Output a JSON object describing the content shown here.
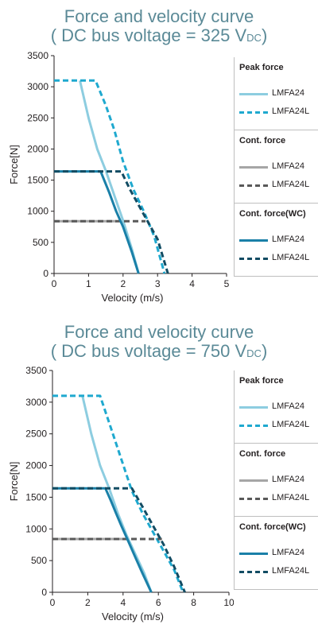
{
  "colors": {
    "peak_lmfa24": "#8dcde0",
    "peak_lmfa24l": "#1fa9cf",
    "cont_lmfa24": "#a6a6a6",
    "cont_lmfa24l": "#595959",
    "wc_lmfa24": "#1a80a8",
    "wc_lmfa24l": "#124c63",
    "title": "#5b8a97"
  },
  "legend": {
    "groups": [
      {
        "title": "Peak force",
        "items": [
          "LMFA24",
          "LMFA24L"
        ]
      },
      {
        "title": "Cont. force",
        "items": [
          "LMFA24",
          "LMFA24L"
        ]
      },
      {
        "title": "Cont. force(WC)",
        "items": [
          "LMFA24",
          "LMFA24L"
        ]
      }
    ]
  },
  "chart_data": [
    {
      "type": "line",
      "title_line1": "Force and velocity curve",
      "title_line2_pre": "( DC bus voltage = 325 V",
      "title_line2_sub": "DC",
      "title_line2_post": ")",
      "xlabel": "Velocity (m/s)",
      "ylabel": "Force[N]",
      "xlim": [
        0,
        5
      ],
      "ylim": [
        0,
        3500
      ],
      "xticks": [
        0,
        1,
        2,
        3,
        4,
        5
      ],
      "yticks": [
        0,
        500,
        1000,
        1500,
        2000,
        2500,
        3000,
        3500
      ],
      "grid": false,
      "legend_position": "right",
      "series": [
        {
          "name": "LMFA24",
          "group": "Peak force",
          "dashed": false,
          "color_key": "peak_lmfa24",
          "x": [
            0.75,
            1.0,
            1.25,
            1.5,
            1.75,
            2.0,
            2.25,
            2.45
          ],
          "y": [
            3100,
            2500,
            2000,
            1650,
            1250,
            850,
            400,
            0
          ]
        },
        {
          "name": "LMFA24L",
          "group": "Peak force",
          "dashed": true,
          "color_key": "peak_lmfa24l",
          "x": [
            0,
            1.2,
            1.5,
            1.75,
            2.0,
            2.3,
            2.6,
            2.9,
            3.2
          ],
          "y": [
            3100,
            3100,
            2700,
            2300,
            1800,
            1350,
            1000,
            600,
            0
          ]
        },
        {
          "name": "LMFA24",
          "group": "Cont. force",
          "dashed": false,
          "color_key": "cont_lmfa24",
          "x": [
            0,
            1.8
          ],
          "y": [
            840,
            840
          ]
        },
        {
          "name": "LMFA24L",
          "group": "Cont. force",
          "dashed": true,
          "color_key": "cont_lmfa24l",
          "x": [
            0,
            2.65
          ],
          "y": [
            840,
            840
          ]
        },
        {
          "name": "LMFA24",
          "group": "Cont. force(WC)",
          "dashed": false,
          "color_key": "wc_lmfa24",
          "x": [
            0,
            1.35,
            1.6,
            1.8,
            2.0,
            2.25,
            2.45
          ],
          "y": [
            1640,
            1640,
            1300,
            1000,
            750,
            350,
            0
          ]
        },
        {
          "name": "LMFA24L",
          "group": "Cont. force(WC)",
          "dashed": true,
          "color_key": "wc_lmfa24l",
          "x": [
            0,
            1.95,
            2.2,
            2.6,
            3.0,
            3.3
          ],
          "y": [
            1640,
            1640,
            1350,
            950,
            550,
            0
          ]
        }
      ]
    },
    {
      "type": "line",
      "title_line1": "Force and velocity curve",
      "title_line2_pre": "( DC bus voltage = 750 V",
      "title_line2_sub": "DC",
      "title_line2_post": ")",
      "xlabel": "Velocity (m/s)",
      "ylabel": "Force[N]",
      "xlim": [
        0,
        10
      ],
      "ylim": [
        0,
        3500
      ],
      "xticks": [
        0,
        2,
        4,
        6,
        8,
        10
      ],
      "yticks": [
        0,
        500,
        1000,
        1500,
        2000,
        2500,
        3000,
        3500
      ],
      "grid": false,
      "legend_position": "right",
      "series": [
        {
          "name": "LMFA24",
          "group": "Peak force",
          "dashed": false,
          "color_key": "peak_lmfa24",
          "x": [
            1.7,
            2.2,
            2.7,
            3.2,
            3.7,
            4.2,
            4.7,
            5.2,
            5.6
          ],
          "y": [
            3100,
            2500,
            2000,
            1650,
            1250,
            900,
            600,
            300,
            0
          ]
        },
        {
          "name": "LMFA24L",
          "group": "Peak force",
          "dashed": true,
          "color_key": "peak_lmfa24l",
          "x": [
            0,
            2.7,
            3.3,
            3.9,
            4.5,
            5.1,
            5.7,
            6.3,
            6.9,
            7.4
          ],
          "y": [
            3100,
            3100,
            2600,
            2100,
            1600,
            1250,
            950,
            650,
            350,
            0
          ]
        },
        {
          "name": "LMFA24",
          "group": "Cont. force",
          "dashed": false,
          "color_key": "cont_lmfa24",
          "x": [
            0,
            4.3
          ],
          "y": [
            840,
            840
          ]
        },
        {
          "name": "LMFA24L",
          "group": "Cont. force",
          "dashed": true,
          "color_key": "cont_lmfa24l",
          "x": [
            0,
            6.2
          ],
          "y": [
            840,
            840
          ]
        },
        {
          "name": "LMFA24",
          "group": "Cont. force(WC)",
          "dashed": false,
          "color_key": "wc_lmfa24",
          "x": [
            0,
            3.0,
            3.3,
            3.6,
            3.9,
            4.3,
            4.7,
            5.1,
            5.6
          ],
          "y": [
            1640,
            1640,
            1450,
            1250,
            1050,
            800,
            550,
            300,
            0
          ]
        },
        {
          "name": "LMFA24L",
          "group": "Cont. force(WC)",
          "dashed": true,
          "color_key": "wc_lmfa24l",
          "x": [
            0,
            4.5,
            5.1,
            5.7,
            6.3,
            6.9,
            7.5
          ],
          "y": [
            1640,
            1640,
            1350,
            1050,
            750,
            400,
            0
          ]
        }
      ]
    }
  ]
}
